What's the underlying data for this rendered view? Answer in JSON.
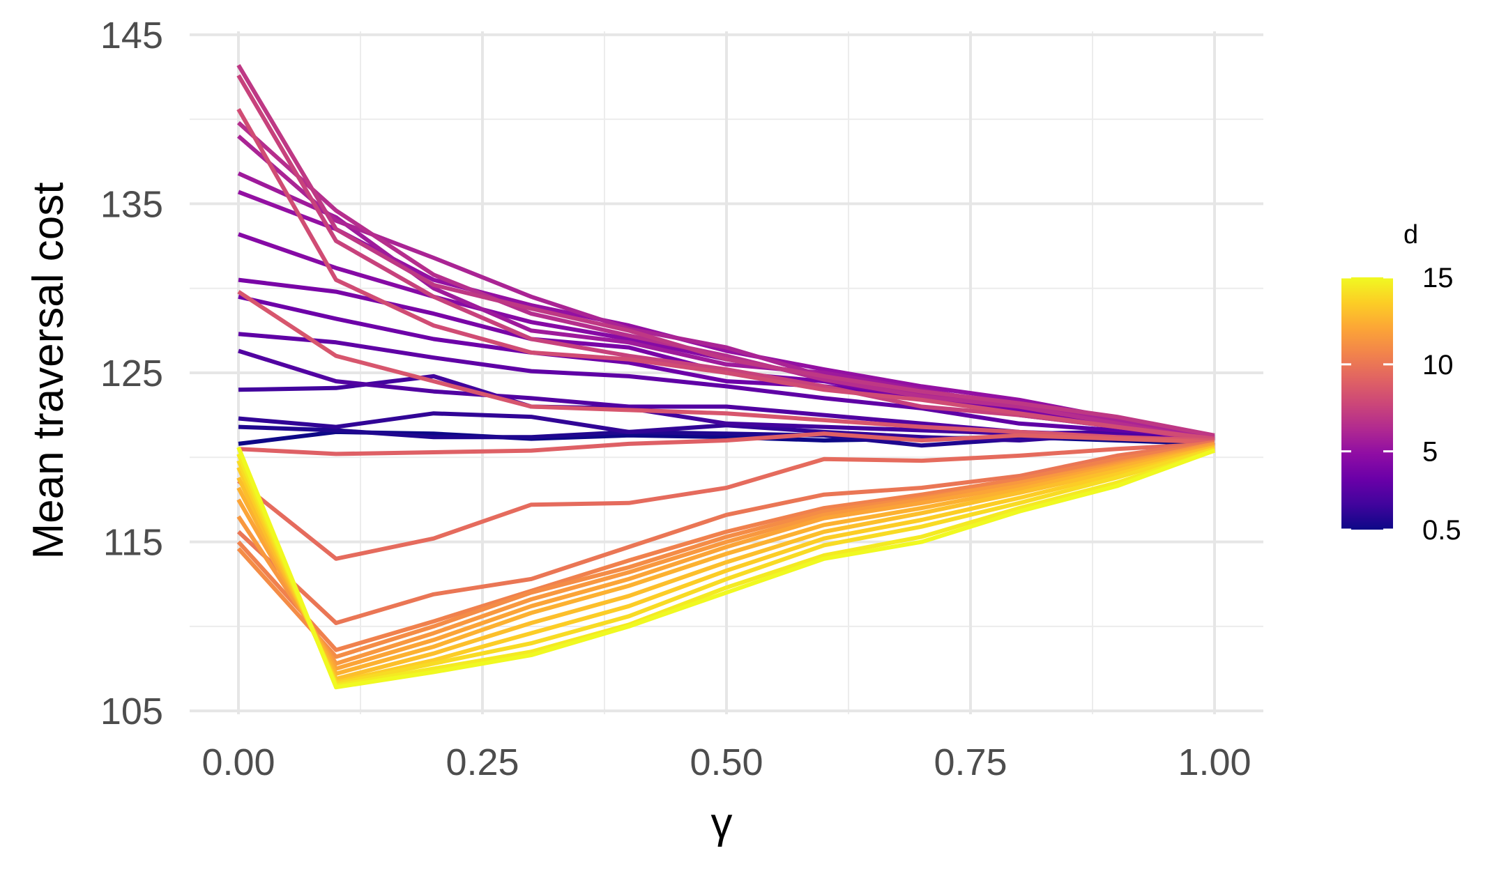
{
  "chart_data": {
    "type": "line",
    "title": "",
    "xlabel": "γ",
    "ylabel": "Mean traversal cost",
    "x": [
      0,
      0.1,
      0.2,
      0.3,
      0.4,
      0.5,
      0.6,
      0.7,
      0.8,
      0.9,
      1.0
    ],
    "xlim": [
      -0.05,
      1.05
    ],
    "ylim": [
      104.8,
      145.2
    ],
    "x_ticks": [
      0,
      0.25,
      0.5,
      0.75,
      1.0
    ],
    "x_tick_labels": [
      "0.00",
      "0.25",
      "0.50",
      "0.75",
      "1.00"
    ],
    "y_ticks": [
      105,
      115,
      125,
      135,
      145
    ],
    "y_tick_labels": [
      "105",
      "115",
      "125",
      "135",
      "145"
    ],
    "grid": true,
    "legend": {
      "title": "d",
      "position": "right",
      "type": "colorbar",
      "range": [
        0.5,
        15
      ],
      "tick_values": [
        0.5,
        5,
        10,
        15
      ],
      "tick_labels": [
        "0.5",
        "5",
        "10",
        "15"
      ],
      "colors": [
        "#0d0887",
        "#41049d",
        "#6a00a8",
        "#8f0da4",
        "#b12a90",
        "#cc4778",
        "#e16462",
        "#f2844b",
        "#fca636",
        "#fcce25",
        "#f0f921"
      ]
    },
    "series": [
      {
        "d": 0.5,
        "values": [
          120.8,
          121.5,
          121.4,
          121.1,
          121.3,
          121.2,
          121.0,
          121.1,
          121.2,
          121.0,
          120.8
        ]
      },
      {
        "d": 1,
        "values": [
          121.8,
          121.6,
          121.2,
          121.2,
          121.5,
          121.4,
          121.3,
          120.7,
          121.1,
          121.2,
          120.9
        ]
      },
      {
        "d": 1.5,
        "values": [
          122.3,
          121.8,
          122.6,
          122.4,
          121.5,
          121.9,
          121.5,
          121.2,
          121.0,
          121.4,
          121.0
        ]
      },
      {
        "d": 2,
        "values": [
          124.0,
          124.1,
          124.8,
          123.0,
          122.9,
          122.0,
          121.8,
          121.6,
          121.4,
          121.5,
          121.1
        ]
      },
      {
        "d": 2.5,
        "values": [
          126.3,
          124.5,
          123.9,
          123.5,
          123.0,
          123.0,
          122.5,
          122.0,
          121.5,
          121.3,
          121.0
        ]
      },
      {
        "d": 3,
        "values": [
          127.3,
          126.8,
          125.9,
          125.1,
          124.8,
          124.2,
          123.5,
          122.9,
          122.0,
          121.6,
          121.2
        ]
      },
      {
        "d": 3.5,
        "values": [
          129.5,
          128.2,
          127.0,
          126.2,
          125.6,
          124.5,
          124.2,
          123.6,
          122.5,
          121.8,
          121.1
        ]
      },
      {
        "d": 4,
        "values": [
          130.5,
          129.8,
          128.5,
          127.0,
          126.5,
          125.0,
          124.5,
          123.5,
          122.8,
          122.0,
          120.7
        ]
      },
      {
        "d": 4.5,
        "values": [
          133.2,
          131.2,
          129.5,
          128.0,
          127.0,
          125.8,
          124.8,
          124.0,
          123.0,
          122.1,
          121.0
        ]
      },
      {
        "d": 5,
        "values": [
          135.7,
          133.5,
          130.5,
          129.0,
          127.8,
          126.3,
          125.2,
          124.2,
          123.4,
          122.3,
          121.1
        ]
      },
      {
        "d": 5.5,
        "values": [
          136.8,
          134.2,
          130.0,
          127.5,
          126.8,
          125.5,
          125.0,
          124.0,
          123.0,
          122.0,
          121.0
        ]
      },
      {
        "d": 6,
        "values": [
          139.0,
          134.0,
          131.8,
          129.5,
          127.6,
          126.5,
          124.8,
          123.8,
          123.2,
          122.2,
          121.2
        ]
      },
      {
        "d": 6.5,
        "values": [
          139.8,
          134.6,
          130.8,
          128.5,
          127.2,
          126.0,
          124.6,
          123.6,
          123.0,
          122.0,
          121.0
        ]
      },
      {
        "d": 7,
        "values": [
          143.2,
          133.5,
          130.2,
          128.8,
          127.5,
          125.8,
          124.8,
          123.9,
          123.2,
          122.4,
          121.3
        ]
      },
      {
        "d": 7.5,
        "values": [
          142.6,
          132.8,
          129.5,
          127.0,
          126.0,
          125.2,
          124.2,
          123.0,
          122.5,
          121.8,
          121.0
        ]
      },
      {
        "d": 8,
        "values": [
          140.6,
          130.5,
          127.8,
          126.2,
          125.8,
          125.0,
          124.0,
          123.4,
          122.6,
          121.8,
          121.1
        ]
      },
      {
        "d": 8.5,
        "values": [
          129.8,
          126.0,
          124.5,
          123.0,
          122.8,
          122.6,
          122.2,
          121.8,
          121.5,
          121.2,
          121.0
        ]
      },
      {
        "d": 9,
        "values": [
          120.5,
          120.2,
          120.3,
          120.4,
          120.8,
          121.0,
          121.4,
          121.0,
          121.3,
          121.1,
          120.9
        ]
      },
      {
        "d": 9.5,
        "values": [
          118.6,
          114.0,
          115.2,
          117.2,
          117.3,
          118.2,
          119.9,
          119.8,
          120.1,
          120.5,
          120.8
        ]
      },
      {
        "d": 10,
        "values": [
          115.6,
          110.2,
          111.9,
          112.8,
          114.7,
          116.6,
          117.8,
          118.2,
          118.9,
          120.1,
          120.9
        ]
      },
      {
        "d": 10.5,
        "values": [
          115.0,
          108.6,
          110.3,
          112.1,
          113.9,
          115.6,
          117.0,
          117.8,
          118.7,
          119.9,
          120.8
        ]
      },
      {
        "d": 11,
        "values": [
          114.6,
          108.2,
          110.0,
          112.0,
          113.5,
          115.3,
          116.8,
          117.6,
          118.5,
          119.7,
          120.7
        ]
      },
      {
        "d": 11.5,
        "values": [
          116.5,
          107.8,
          109.6,
          111.6,
          113.2,
          115.0,
          116.6,
          117.5,
          118.5,
          119.6,
          120.8
        ]
      },
      {
        "d": 12,
        "values": [
          117.5,
          107.5,
          109.2,
          111.2,
          112.8,
          114.7,
          116.4,
          117.3,
          118.3,
          119.5,
          120.7
        ]
      },
      {
        "d": 12.5,
        "values": [
          118.2,
          107.2,
          108.8,
          110.8,
          112.4,
          114.3,
          116.0,
          117.0,
          118.1,
          119.4,
          120.6
        ]
      },
      {
        "d": 13,
        "values": [
          118.8,
          106.9,
          108.4,
          110.2,
          111.8,
          113.8,
          115.6,
          116.7,
          117.9,
          119.2,
          120.6
        ]
      },
      {
        "d": 13.5,
        "values": [
          119.4,
          106.7,
          108.0,
          109.6,
          111.2,
          113.3,
          115.2,
          116.3,
          117.6,
          119.0,
          120.5
        ]
      },
      {
        "d": 14,
        "values": [
          119.8,
          106.6,
          107.8,
          109.0,
          110.6,
          112.8,
          114.8,
          115.9,
          117.3,
          118.8,
          120.5
        ]
      },
      {
        "d": 14.5,
        "values": [
          120.2,
          106.5,
          107.5,
          108.5,
          110.1,
          112.3,
          114.2,
          115.3,
          117.0,
          118.5,
          120.4
        ]
      },
      {
        "d": 15,
        "values": [
          120.6,
          106.4,
          107.3,
          108.3,
          110.0,
          112.0,
          114.0,
          115.0,
          116.8,
          118.3,
          120.4
        ]
      }
    ]
  }
}
